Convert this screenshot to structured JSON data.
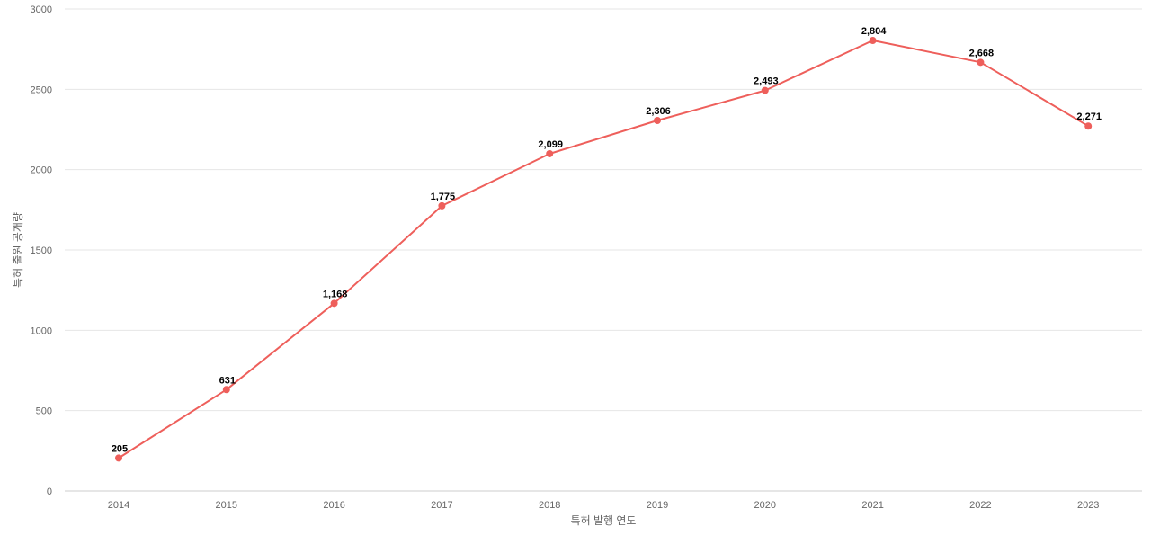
{
  "chart_data": {
    "type": "line",
    "title": "",
    "xlabel": "특허 발행 연도",
    "ylabel": "특허 출원 공개량",
    "x": [
      "2014",
      "2015",
      "2016",
      "2017",
      "2018",
      "2019",
      "2020",
      "2021",
      "2022",
      "2023"
    ],
    "values": [
      205,
      631,
      1168,
      1775,
      2099,
      2306,
      2493,
      2804,
      2668,
      2271
    ],
    "data_labels": [
      "205",
      "631",
      "1,168",
      "1,775",
      "2,099",
      "2,306",
      "2,493",
      "2,804",
      "2,668",
      "2,271"
    ],
    "yticks": [
      "0",
      "500",
      "1000",
      "1500",
      "2000",
      "2500",
      "3000"
    ],
    "ylim": [
      0,
      3000
    ],
    "grid": true,
    "legend": "none",
    "line_color": "#ee5f5b",
    "marker_color": "#ee5f5b"
  }
}
